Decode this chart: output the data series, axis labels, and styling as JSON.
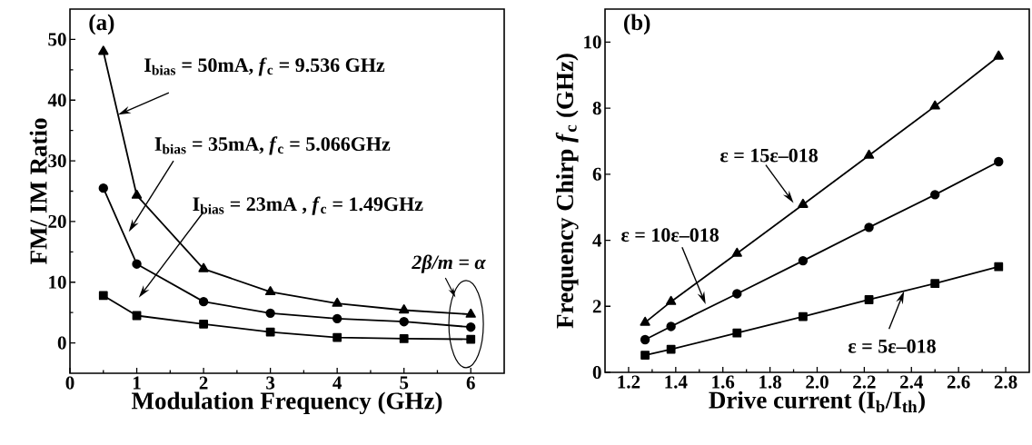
{
  "chart_data": [
    {
      "type": "line",
      "title": "(a)",
      "xlabel": "Modulation Frequency (GHz)",
      "ylabel": "FM/ IM Ratio",
      "x": [
        0.5,
        1,
        2,
        3,
        4,
        5,
        6
      ],
      "series": [
        {
          "color": "#000000",
          "marker": "triangle",
          "values": [
            48,
            24.3,
            12.2,
            8.4,
            6.5,
            5.4,
            4.7
          ]
        },
        {
          "color": "#000000",
          "marker": "circle",
          "values": [
            25.5,
            13,
            6.8,
            4.9,
            4,
            3.5,
            2.6
          ]
        },
        {
          "color": "#000000",
          "marker": "square",
          "values": [
            7.8,
            4.5,
            3.1,
            1.8,
            0.9,
            0.7,
            0.6
          ]
        }
      ],
      "xlim": [
        0,
        6.5
      ],
      "ylim": [
        -5,
        55
      ],
      "xticks": [
        0,
        1,
        2,
        3,
        4,
        5,
        6
      ],
      "yticks": [
        0,
        10,
        20,
        30,
        40,
        50
      ],
      "annotations": [
        {
          "text": "I$_{bias}$ = 50mA, *f*$_{c}$ = 9.536 GHz",
          "x": 0.72,
          "y": 37.6
        },
        "I$_{bias}$ = 35mA, *f*$_{c}$ = 5.066GHz",
        "I$_{bias}$ = 23mA , *f*$_{c}$ = 1.49GHz",
        "2β/m = α"
      ],
      "line_style": "solid"
    },
    {
      "type": "line",
      "title": "(b)",
      "xlabel": "Drive current (I$_{b}$/I$_{th}$)",
      "ylabel": "Frequency Chirp *f*$_{c}$ (GHz)",
      "x": [
        1.27,
        1.38,
        1.66,
        1.94,
        2.22,
        2.5,
        2.77
      ],
      "series": [
        {
          "color": "#000000",
          "marker": "triangle",
          "values": [
            1.51,
            2.14,
            3.6,
            5.08,
            6.57,
            8.06,
            9.57
          ]
        },
        {
          "color": "#000000",
          "marker": "circle",
          "values": [
            0.99,
            1.39,
            2.38,
            3.38,
            4.39,
            5.38,
            6.38
          ]
        },
        {
          "color": "#000000",
          "marker": "square",
          "values": [
            0.52,
            0.7,
            1.19,
            1.69,
            2.2,
            2.69,
            3.2
          ]
        }
      ],
      "xlim": [
        1.1,
        2.9
      ],
      "ylim": [
        0,
        11
      ],
      "xticks": [
        1.2,
        1.4,
        1.6,
        1.8,
        {
          "value": 2,
          "label": "2.0"
        },
        2.2,
        2.4,
        2.6,
        2.8
      ],
      "yticks": [
        0,
        2,
        4,
        6,
        8,
        10
      ],
      "annotations": [
        "ε = 15ε–018",
        "ε = 10ε–018",
        {
          "text": "ε = 5ε–018",
          "x": 2.369,
          "y": 2.46
        }
      ],
      "line_style": "solid"
    }
  ]
}
